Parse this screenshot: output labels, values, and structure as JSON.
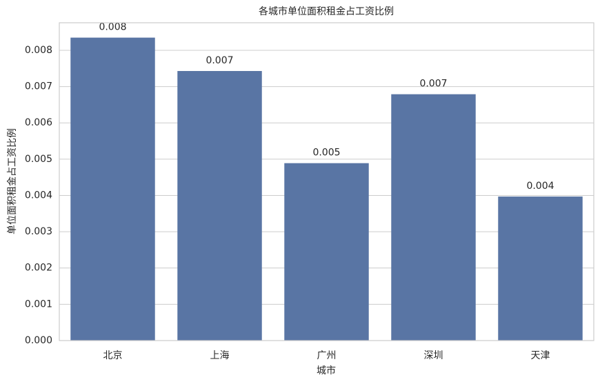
{
  "chart_data": {
    "type": "bar",
    "title": "各城市单位面积租金占工资比例",
    "x_label": "城市",
    "y_label": "单位面积租金占工资比例",
    "categories": [
      "北京",
      "上海",
      "广州",
      "深圳",
      "天津"
    ],
    "values": [
      0.00835,
      0.00743,
      0.00489,
      0.00679,
      0.00397
    ],
    "value_labels": [
      "0.008",
      "0.007",
      "0.005",
      "0.007",
      "0.004"
    ],
    "color": "#5975a4",
    "ylim": [
      0,
      0.00876
    ],
    "yticks": [
      {
        "value": 0,
        "label": "0.000"
      },
      {
        "value": 0.001,
        "label": "0.001"
      },
      {
        "value": 0.002,
        "label": "0.002"
      },
      {
        "value": 0.003,
        "label": "0.003"
      },
      {
        "value": 0.004,
        "label": "0.004"
      },
      {
        "value": 0.005,
        "label": "0.005"
      },
      {
        "value": 0.006,
        "label": "0.006"
      },
      {
        "value": 0.007,
        "label": "0.007"
      },
      {
        "value": 0.008,
        "label": "0.008"
      }
    ],
    "grid": true
  }
}
